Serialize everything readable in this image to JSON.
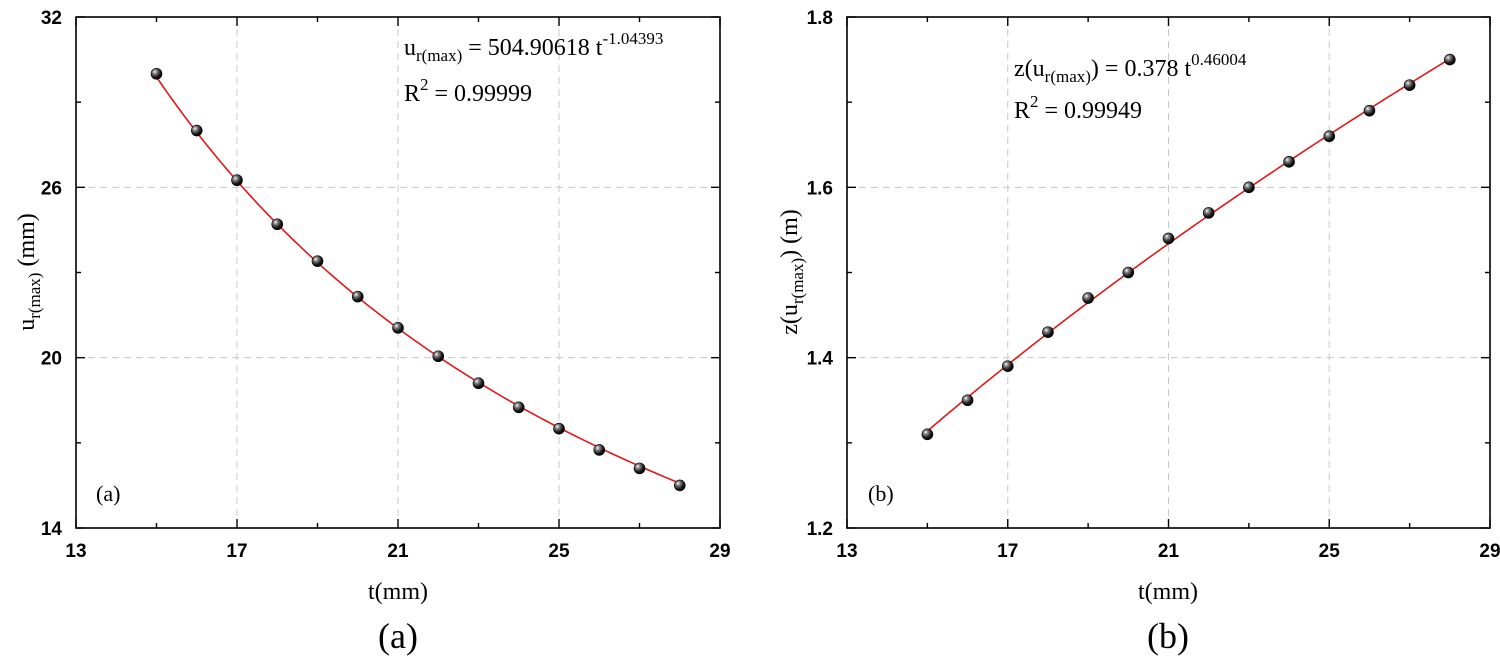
{
  "chart_data": [
    {
      "type": "scatter",
      "panel_label": "(a)",
      "caption": "(a)",
      "xlabel": "t(mm)",
      "ylabel": {
        "main": "u",
        "sub": "r(max)",
        "unit": " (mm)"
      },
      "xlim": [
        13,
        29
      ],
      "ylim": [
        14,
        32
      ],
      "xticks": [
        13,
        17,
        21,
        25,
        29
      ],
      "yticks": [
        14,
        20,
        26,
        32
      ],
      "grid": true,
      "series": [
        {
          "name": "data",
          "x": [
            15,
            16,
            17,
            18,
            19,
            20,
            21,
            22,
            23,
            24,
            25,
            26,
            27,
            28
          ],
          "y": [
            30.0,
            28.0,
            26.25,
            24.7,
            23.4,
            22.15,
            21.05,
            20.05,
            19.1,
            18.25,
            17.5,
            16.75,
            16.1,
            15.5
          ]
        },
        {
          "name": "fit",
          "model": "power",
          "a": 504.90618,
          "b": -1.04393
        }
      ],
      "equation": {
        "lhs_main": "u",
        "lhs_sub": "r(max)",
        "rhs": " = 504.90618 t",
        "exponent": "-1.04393"
      },
      "r_squared": {
        "label": "R",
        "power": "2",
        "value": " = 0.99999"
      }
    },
    {
      "type": "scatter",
      "panel_label": "(b)",
      "caption": "(b)",
      "xlabel": "t(mm)",
      "ylabel": {
        "main": "z(u",
        "sub": "r(max)",
        "unit": ") (m)"
      },
      "xlim": [
        13,
        29
      ],
      "ylim": [
        1.2,
        1.8
      ],
      "xticks": [
        13,
        17,
        21,
        25,
        29
      ],
      "yticks": [
        1.2,
        1.4,
        1.6,
        1.8
      ],
      "ytick_labels": [
        "1.2",
        "1.4",
        "1.6",
        "1.8"
      ],
      "grid": true,
      "series": [
        {
          "name": "data",
          "x": [
            15,
            16,
            17,
            18,
            19,
            20,
            21,
            22,
            23,
            24,
            25,
            26,
            27,
            28
          ],
          "y": [
            1.31,
            1.35,
            1.39,
            1.43,
            1.47,
            1.5,
            1.54,
            1.57,
            1.6,
            1.63,
            1.66,
            1.69,
            1.72,
            1.75
          ]
        },
        {
          "name": "fit",
          "model": "power",
          "a": 0.378,
          "b": 0.46004
        }
      ],
      "equation": {
        "lhs_main": "z(u",
        "lhs_sub": "r(max)",
        "rhs": ")  = 0.378 t",
        "exponent": "0.46004"
      },
      "r_squared": {
        "label": "R",
        "power": "2",
        "value": " = 0.99949"
      }
    }
  ]
}
